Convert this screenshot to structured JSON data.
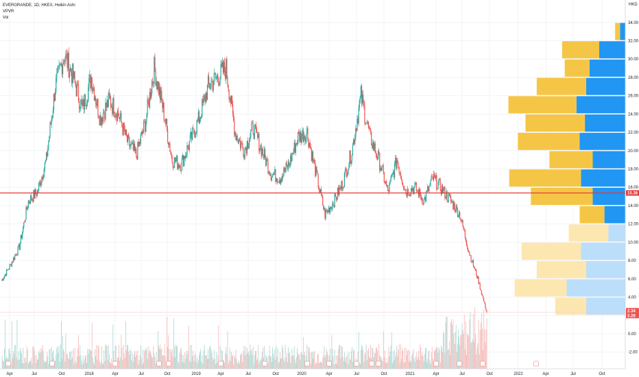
{
  "header": {
    "title": "EVERGRANDE, 1D, HKEX, Heikin Ashi",
    "indicator_1": "VPVR",
    "indicator_2": "Vol",
    "currency": "HKD"
  },
  "colors": {
    "up": "#26a69a",
    "down": "#ef5350",
    "vp_up_top": "#2196f3",
    "vp_down_top": "#f5c646",
    "vp_up_bottom": "#bbdefb",
    "vp_down_bottom": "#fde7b0",
    "hline": "#e53935",
    "grid": "#f0f3fa"
  },
  "price_tags": {
    "hline": "15.38",
    "close_1": "2.34",
    "close_2": "2.28"
  },
  "chart_data": {
    "type": "candlestick",
    "title": "EVERGRANDE, 1D, HKEX, Heikin Ashi",
    "ylabel": "HKD",
    "ylim": [
      -3.5,
      35.5
    ],
    "y_ticks": [
      "34.00",
      "32.00",
      "30.00",
      "28.00",
      "26.00",
      "24.00",
      "22.00",
      "20.00",
      "18.00",
      "16.00",
      "14.00",
      "12.00",
      "10.00",
      "8.00",
      "6.00",
      "4.00",
      "2.00",
      "0.00",
      "-2.00"
    ],
    "x_ticks": [
      "Apr",
      "Jul",
      "Oct",
      "2018",
      "Apr",
      "Jul",
      "Oct",
      "2019",
      "Apr",
      "Jul",
      "Oct",
      "2020",
      "Apr",
      "Jul",
      "Oct",
      "2021",
      "Apr",
      "Jul",
      "Oct",
      "2022",
      "Apr",
      "Jul",
      "Oct"
    ],
    "price_path": {
      "dates": [
        "2017-03",
        "2017-04",
        "2017-05",
        "2017-06",
        "2017-07",
        "2017-08",
        "2017-09",
        "2017-10",
        "2017-11",
        "2017-12",
        "2018-01",
        "2018-02",
        "2018-03",
        "2018-04",
        "2018-05",
        "2018-06",
        "2018-07",
        "2018-08",
        "2018-09",
        "2018-10",
        "2018-11",
        "2018-12",
        "2019-01",
        "2019-02",
        "2019-03",
        "2019-04",
        "2019-05",
        "2019-06",
        "2019-07",
        "2019-08",
        "2019-09",
        "2019-10",
        "2019-11",
        "2019-12",
        "2020-01",
        "2020-02",
        "2020-03",
        "2020-04",
        "2020-05",
        "2020-06",
        "2020-07",
        "2020-08",
        "2020-09",
        "2020-10",
        "2020-11",
        "2020-12",
        "2021-01",
        "2021-02",
        "2021-03",
        "2021-04",
        "2021-05",
        "2021-06",
        "2021-07",
        "2021-08",
        "2021-09"
      ],
      "close": [
        5.8,
        7.5,
        9.5,
        14.5,
        15.5,
        19.0,
        27.0,
        30.5,
        28.0,
        24.5,
        28.0,
        23.5,
        25.5,
        24.0,
        21.0,
        19.5,
        23.0,
        29.0,
        24.5,
        19.0,
        18.5,
        21.0,
        23.5,
        27.0,
        28.0,
        29.0,
        22.0,
        20.0,
        22.5,
        20.0,
        17.5,
        17.0,
        18.5,
        21.5,
        22.0,
        17.5,
        13.0,
        14.5,
        16.5,
        20.0,
        26.0,
        21.5,
        19.0,
        15.5,
        19.0,
        15.5,
        16.0,
        14.5,
        17.0,
        15.8,
        14.5,
        13.0,
        9.0,
        6.0,
        2.3
      ]
    },
    "volume_profile": {
      "price_levels": [
        32.0,
        30.0,
        28.0,
        26.0,
        24.0,
        22.0,
        20.0,
        18.0,
        16.0,
        14.0,
        12.0,
        10.0,
        8.0,
        6.0,
        4.0,
        2.0
      ],
      "up_volume": [
        8,
        40,
        55,
        60,
        75,
        62,
        70,
        50,
        68,
        50,
        32,
        26,
        68,
        60,
        90,
        60
      ],
      "down_volume": [
        4,
        30,
        20,
        40,
        55,
        48,
        50,
        35,
        58,
        50,
        20,
        32,
        48,
        40,
        42,
        25
      ]
    },
    "volume": {
      "note": "bottom panel daily volume bars"
    },
    "horizontal_line": 15.38,
    "last_price": 2.34
  }
}
